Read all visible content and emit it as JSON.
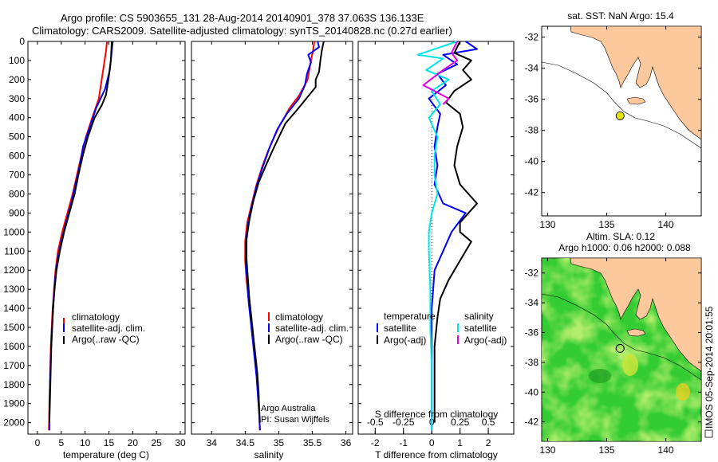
{
  "header": {
    "line1": "Argo profile: CS 5903655_131 28-Aug-2014 20140901_378 37.063S 136.133E",
    "line2": "Climatology: CARS2009. Satellite-adjusted climatology: synTS_20140828.nc (0.27d earlier)"
  },
  "colors": {
    "climatology": "#ff0000",
    "satellite": "#0000ff",
    "argo": "#000000",
    "sal_satellite": "#00e6e6",
    "sal_argo": "#e600e6",
    "land": "#fdc89b",
    "sla_green": "#33cc33",
    "dot": "#e6e600"
  },
  "side_text": "IMOS 05-Sep-2014 20:01:55",
  "chart_data": [
    {
      "type": "line",
      "id": "temperature",
      "xlabel": "temperature (deg C)",
      "xlim": [
        -2,
        31
      ],
      "ylim": [
        2060,
        0
      ],
      "xticks": [
        0,
        5,
        10,
        15,
        20,
        25,
        30
      ],
      "yticks": [
        0,
        100,
        200,
        300,
        400,
        500,
        600,
        700,
        800,
        900,
        1000,
        1100,
        1200,
        1300,
        1400,
        1500,
        1600,
        1700,
        1800,
        1900,
        2000
      ],
      "legend": [
        "climatology",
        "satellite-adj. clim.",
        "Argo(..raw -QC)"
      ],
      "series": [
        {
          "name": "climatology",
          "color": "#ff0000",
          "points": [
            [
              14.6,
              0
            ],
            [
              14.4,
              50
            ],
            [
              14.1,
              100
            ],
            [
              13.5,
              200
            ],
            [
              12.9,
              300
            ],
            [
              11.5,
              400
            ],
            [
              10.2,
              500
            ],
            [
              9.2,
              600
            ],
            [
              8.3,
              700
            ],
            [
              7.4,
              800
            ],
            [
              6.3,
              900
            ],
            [
              5.2,
              1000
            ],
            [
              4.3,
              1100
            ],
            [
              3.8,
              1200
            ],
            [
              3.5,
              1300
            ],
            [
              3.2,
              1400
            ],
            [
              3.0,
              1500
            ],
            [
              2.8,
              1600
            ],
            [
              2.7,
              1700
            ],
            [
              2.6,
              1800
            ],
            [
              2.5,
              1900
            ],
            [
              2.4,
              2040
            ]
          ]
        },
        {
          "name": "satellite-adj. clim.",
          "color": "#0000ff",
          "points": [
            [
              15.8,
              0
            ],
            [
              15.6,
              50
            ],
            [
              15.2,
              150
            ],
            [
              14.2,
              250
            ],
            [
              12.3,
              350
            ],
            [
              11.0,
              450
            ],
            [
              9.6,
              550
            ],
            [
              8.9,
              650
            ],
            [
              8.0,
              750
            ],
            [
              7.1,
              850
            ],
            [
              6.0,
              950
            ],
            [
              5.0,
              1050
            ],
            [
              4.2,
              1150
            ],
            [
              3.7,
              1250
            ],
            [
              3.4,
              1350
            ],
            [
              3.2,
              1450
            ],
            [
              3.0,
              1550
            ],
            [
              2.8,
              1650
            ],
            [
              2.7,
              1750
            ],
            [
              2.6,
              1850
            ],
            [
              2.5,
              1950
            ],
            [
              2.5,
              2040
            ]
          ]
        },
        {
          "name": "Argo(..raw -QC)",
          "color": "#000000",
          "points": [
            [
              15.6,
              0
            ],
            [
              15.4,
              100
            ],
            [
              14.9,
              200
            ],
            [
              14.4,
              280
            ],
            [
              13.6,
              330
            ],
            [
              12.0,
              400
            ],
            [
              10.6,
              500
            ],
            [
              9.5,
              600
            ],
            [
              8.6,
              700
            ],
            [
              7.8,
              800
            ],
            [
              6.7,
              900
            ],
            [
              5.6,
              1000
            ],
            [
              4.7,
              1100
            ],
            [
              4.0,
              1200
            ],
            [
              3.6,
              1300
            ],
            [
              3.3,
              1400
            ],
            [
              3.1,
              1500
            ],
            [
              2.9,
              1600
            ],
            [
              2.8,
              1700
            ],
            [
              2.7,
              1800
            ],
            [
              2.6,
              1900
            ],
            [
              2.5,
              2000
            ]
          ]
        }
      ]
    },
    {
      "type": "line",
      "id": "salinity",
      "xlabel": "salinity",
      "xlim": [
        33.7,
        36.1
      ],
      "ylim": [
        2060,
        0
      ],
      "xticks": [
        34,
        34.5,
        35,
        35.5,
        36
      ],
      "legend": [
        "climatology",
        "satellite-adj. clim.",
        "Argo(..raw -QC)"
      ],
      "annotation": [
        "Argo Australia",
        "PI: Susan Wijffels"
      ],
      "series": [
        {
          "name": "climatology",
          "color": "#ff0000",
          "points": [
            [
              35.53,
              0
            ],
            [
              35.51,
              50
            ],
            [
              35.48,
              100
            ],
            [
              35.43,
              200
            ],
            [
              35.31,
              280
            ],
            [
              35.16,
              350
            ],
            [
              35.0,
              450
            ],
            [
              34.87,
              550
            ],
            [
              34.76,
              650
            ],
            [
              34.67,
              750
            ],
            [
              34.6,
              850
            ],
            [
              34.53,
              950
            ],
            [
              34.5,
              1050
            ],
            [
              34.5,
              1150
            ],
            [
              34.52,
              1250
            ],
            [
              34.55,
              1350
            ],
            [
              34.58,
              1450
            ],
            [
              34.61,
              1550
            ],
            [
              34.64,
              1650
            ],
            [
              34.67,
              1750
            ],
            [
              34.69,
              1850
            ],
            [
              34.71,
              1950
            ],
            [
              34.72,
              2040
            ]
          ]
        },
        {
          "name": "satellite-adj. clim.",
          "color": "#0000ff",
          "points": [
            [
              35.58,
              0
            ],
            [
              35.6,
              30
            ],
            [
              35.44,
              70
            ],
            [
              35.48,
              110
            ],
            [
              35.42,
              170
            ],
            [
              35.39,
              230
            ],
            [
              35.3,
              300
            ],
            [
              35.12,
              380
            ],
            [
              34.98,
              460
            ],
            [
              34.86,
              560
            ],
            [
              34.76,
              660
            ],
            [
              34.67,
              760
            ],
            [
              34.6,
              860
            ],
            [
              34.54,
              960
            ],
            [
              34.51,
              1060
            ],
            [
              34.51,
              1160
            ],
            [
              34.53,
              1260
            ],
            [
              34.55,
              1360
            ],
            [
              34.58,
              1460
            ],
            [
              34.61,
              1560
            ],
            [
              34.64,
              1660
            ],
            [
              34.67,
              1760
            ],
            [
              34.69,
              1860
            ],
            [
              34.71,
              1960
            ],
            [
              34.72,
              2040
            ]
          ]
        },
        {
          "name": "Argo(..raw -QC)",
          "color": "#000000",
          "points": [
            [
              35.67,
              0
            ],
            [
              35.64,
              50
            ],
            [
              35.62,
              100
            ],
            [
              35.6,
              160
            ],
            [
              35.55,
              200
            ],
            [
              35.55,
              240
            ],
            [
              35.41,
              300
            ],
            [
              35.27,
              360
            ],
            [
              35.1,
              430
            ],
            [
              34.95,
              540
            ],
            [
              34.82,
              640
            ],
            [
              34.7,
              740
            ],
            [
              34.62,
              840
            ],
            [
              34.56,
              940
            ],
            [
              34.52,
              1040
            ],
            [
              34.52,
              1140
            ],
            [
              34.54,
              1240
            ],
            [
              34.56,
              1340
            ],
            [
              34.59,
              1440
            ],
            [
              34.62,
              1540
            ],
            [
              34.65,
              1640
            ],
            [
              34.68,
              1740
            ],
            [
              34.7,
              1840
            ],
            [
              34.71,
              1940
            ],
            [
              34.72,
              2000
            ]
          ]
        }
      ]
    },
    {
      "type": "line",
      "id": "difference",
      "xlabel": "T difference from climatology",
      "xlabel_top": "S difference from climatology",
      "xlim": [
        -2.6,
        2.9
      ],
      "ylim": [
        2060,
        0
      ],
      "xticks": [
        -2,
        -1,
        0,
        1,
        2
      ],
      "xticks_top": [
        "-0.5",
        "-0.25",
        "0",
        "0.25",
        "0.5"
      ],
      "legend_left_title": "temperature",
      "legend_right_title": "salinity",
      "legend_left": [
        "satellite",
        "Argo(-adj)"
      ],
      "legend_right": [
        "satellite",
        "Argo(-adj)"
      ],
      "series": [
        {
          "name": "T satellite",
          "color": "#0000ff",
          "points": [
            [
              1.2,
              0
            ],
            [
              1.6,
              40
            ],
            [
              0.4,
              70
            ],
            [
              0.9,
              120
            ],
            [
              0.2,
              170
            ],
            [
              0.5,
              230
            ],
            [
              -0.1,
              300
            ],
            [
              0.3,
              380
            ],
            [
              0.2,
              450
            ],
            [
              0.1,
              550
            ],
            [
              0.2,
              650
            ],
            [
              0.1,
              750
            ],
            [
              0.4,
              850
            ],
            [
              1.2,
              900
            ],
            [
              0.7,
              1000
            ],
            [
              0.4,
              1100
            ],
            [
              0.1,
              1200
            ],
            [
              0.05,
              1300
            ],
            [
              0.0,
              1400
            ],
            [
              0.0,
              1600
            ],
            [
              0.0,
              1800
            ],
            [
              0.0,
              2040
            ]
          ]
        },
        {
          "name": "T Argo(-adj)",
          "color": "#000000",
          "points": [
            [
              1.0,
              0
            ],
            [
              0.8,
              60
            ],
            [
              1.4,
              100
            ],
            [
              1.1,
              150
            ],
            [
              1.4,
              200
            ],
            [
              0.8,
              260
            ],
            [
              0.5,
              320
            ],
            [
              1.0,
              380
            ],
            [
              1.1,
              450
            ],
            [
              0.9,
              550
            ],
            [
              0.8,
              650
            ],
            [
              1.0,
              750
            ],
            [
              1.6,
              850
            ],
            [
              1.0,
              950
            ],
            [
              1.0,
              1000
            ],
            [
              1.4,
              1050
            ],
            [
              1.0,
              1150
            ],
            [
              0.6,
              1250
            ],
            [
              0.3,
              1350
            ],
            [
              0.2,
              1450
            ],
            [
              0.1,
              1600
            ],
            [
              0.1,
              1800
            ],
            [
              0.1,
              2000
            ]
          ]
        },
        {
          "name": "S satellite",
          "color": "#00e6e6",
          "points": [
            [
              0.9,
              0
            ],
            [
              -0.5,
              70
            ],
            [
              0.4,
              90
            ],
            [
              -0.2,
              150
            ],
            [
              0.6,
              200
            ],
            [
              0.0,
              260
            ],
            [
              0.3,
              330
            ],
            [
              -0.1,
              400
            ],
            [
              0.2,
              500
            ],
            [
              0.1,
              600
            ],
            [
              0.1,
              700
            ],
            [
              0.2,
              800
            ],
            [
              0.0,
              900
            ],
            [
              -0.1,
              1000
            ],
            [
              -0.1,
              1100
            ],
            [
              -0.05,
              1300
            ],
            [
              -0.05,
              1500
            ],
            [
              0.0,
              1700
            ],
            [
              0.0,
              1900
            ],
            [
              0.0,
              2040
            ]
          ]
        },
        {
          "name": "S Argo(-adj)",
          "color": "#e600e6",
          "points": [
            [
              0.9,
              0
            ],
            [
              0.7,
              60
            ],
            [
              0.9,
              100
            ],
            [
              0.4,
              150
            ],
            [
              -0.3,
              230
            ],
            [
              0.1,
              260
            ],
            [
              0.6,
              300
            ],
            [
              0.4,
              330
            ]
          ]
        }
      ]
    },
    {
      "type": "map",
      "id": "sst-map",
      "title": "sat. SST: NaN Argo: 15.4",
      "xlim": [
        129.5,
        143
      ],
      "ylim": [
        -43.5,
        -31.3
      ],
      "xticks": [
        130,
        135,
        140
      ],
      "yticks": [
        -32,
        -34,
        -36,
        -38,
        -40,
        -42
      ],
      "marker": [
        136.133,
        -37.063
      ]
    },
    {
      "type": "map",
      "id": "sla-map",
      "title": "Altim. SLA: 0.12",
      "subtitle": "Argo h1000: 0.06 h2000: 0.088",
      "xlim": [
        129.5,
        143
      ],
      "ylim": [
        -43.3,
        -31.0
      ],
      "xticks": [
        130,
        135,
        140
      ],
      "yticks": [
        -32,
        -34,
        -36,
        -38,
        -40,
        -42
      ],
      "marker": [
        136.133,
        -37.063
      ]
    }
  ]
}
